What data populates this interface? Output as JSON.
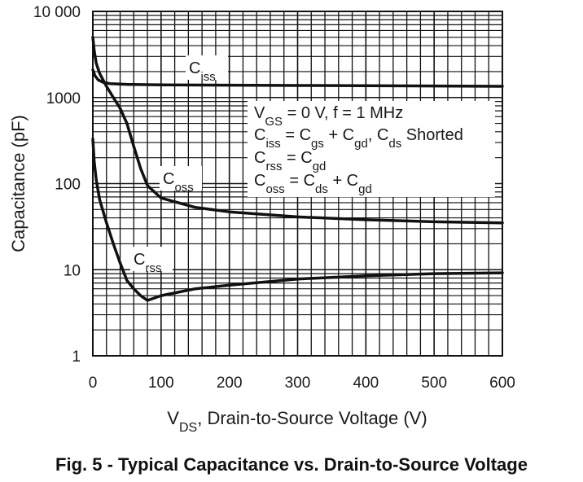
{
  "chart_data": {
    "type": "line",
    "title": "Fig. 5 - Typical Capacitance vs. Drain-to-Source Voltage",
    "xlabel_main": "V",
    "xlabel_sub": "DS",
    "xlabel_rest": ", Drain-to-Source Voltage (V)",
    "ylabel": "Capacitance (pF)",
    "xlim": [
      0,
      600
    ],
    "ylim": [
      1,
      10000
    ],
    "yscale": "log",
    "grid": true,
    "x_ticks": [
      0,
      100,
      200,
      300,
      400,
      500,
      600
    ],
    "x_tick_labels": [
      "0",
      "100",
      "200",
      "300",
      "400",
      "500",
      "600"
    ],
    "y_ticks": [
      1,
      10,
      100,
      1000,
      10000
    ],
    "y_tick_labels": [
      "1",
      "10",
      "100",
      "1000",
      "10 000"
    ],
    "series": [
      {
        "name": "Ciss",
        "label_main": "C",
        "label_sub": "iss",
        "x": [
          0,
          3,
          8,
          15,
          25,
          50,
          100,
          200,
          300,
          400,
          500,
          600
        ],
        "y": [
          2100,
          1800,
          1600,
          1500,
          1450,
          1420,
          1400,
          1390,
          1380,
          1370,
          1360,
          1350
        ]
      },
      {
        "name": "Coss",
        "label_main": "C",
        "label_sub": "oss",
        "x": [
          0,
          2,
          5,
          10,
          20,
          30,
          40,
          50,
          60,
          70,
          80,
          100,
          150,
          200,
          300,
          400,
          500,
          600
        ],
        "y": [
          5000,
          3500,
          2500,
          1900,
          1350,
          1000,
          750,
          500,
          270,
          150,
          95,
          68,
          53,
          47,
          41,
          38,
          36,
          35
        ]
      },
      {
        "name": "Crss",
        "label_main": "C",
        "label_sub": "rss",
        "x": [
          0,
          2,
          5,
          10,
          20,
          30,
          40,
          50,
          60,
          70,
          80,
          100,
          150,
          200,
          300,
          400,
          500,
          600
        ],
        "y": [
          330,
          180,
          110,
          65,
          35,
          20,
          12,
          7.5,
          6.0,
          5.0,
          4.4,
          5.0,
          6.0,
          6.6,
          7.8,
          8.5,
          9.0,
          9.2
        ]
      }
    ],
    "annotation_lines": [
      {
        "parts": [
          [
            "V",
            "main"
          ],
          [
            "GS",
            "sub"
          ],
          [
            " = 0 V, f = 1 MHz",
            "main"
          ]
        ]
      },
      {
        "parts": [
          [
            "C",
            "main"
          ],
          [
            "iss",
            "sub"
          ],
          [
            " = C",
            "main"
          ],
          [
            "gs",
            "sub"
          ],
          [
            " + C",
            "main"
          ],
          [
            "gd",
            "sub"
          ],
          [
            ", C",
            "main"
          ],
          [
            "ds",
            "sub"
          ],
          [
            " Shorted",
            "main"
          ]
        ]
      },
      {
        "parts": [
          [
            "C",
            "main"
          ],
          [
            "rss",
            "sub"
          ],
          [
            " = C",
            "main"
          ],
          [
            "gd",
            "sub"
          ]
        ]
      },
      {
        "parts": [
          [
            "C",
            "main"
          ],
          [
            "oss",
            "sub"
          ],
          [
            " = C",
            "main"
          ],
          [
            "ds",
            "sub"
          ],
          [
            " + C",
            "main"
          ],
          [
            "gd",
            "sub"
          ]
        ]
      }
    ]
  }
}
